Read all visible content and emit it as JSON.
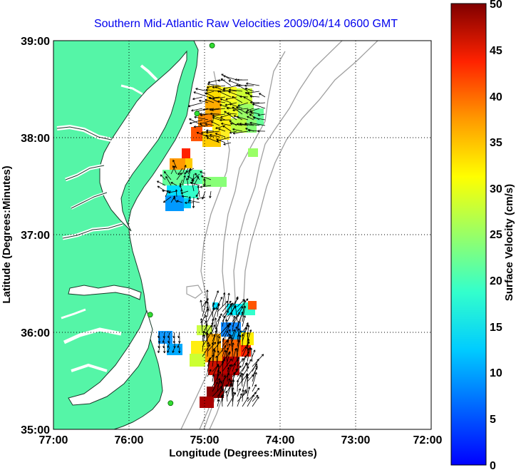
{
  "title": "Southern Mid-Atlantic Raw Velocities 2009/04/14 0600 GMT",
  "xlabel": "Longitude (Degrees:Minutes)",
  "ylabel": "Latitude (Degrees:Minutes)",
  "x_ticks": [
    "77:00",
    "76:00",
    "75:00",
    "74:00",
    "73:00",
    "72:00"
  ],
  "y_ticks": [
    "39:00",
    "38:00",
    "37:00",
    "36:00",
    "35:00"
  ],
  "colorbar": {
    "label": "Surface Velocity (cm/s)",
    "ticks": [
      "50",
      "45",
      "40",
      "35",
      "30",
      "25",
      "20",
      "15",
      "10",
      "5",
      "0"
    ],
    "range": [
      0,
      50
    ],
    "colormap": "jet"
  },
  "colors": {
    "land": "#55f5a7",
    "coastline": "#1a3a2a",
    "bathymetry": "#a0a0a0",
    "title": "#0000ee",
    "vectors": "#000000"
  },
  "extent": {
    "lon": [
      -77,
      -72
    ],
    "lat": [
      35,
      39
    ]
  },
  "grid": true,
  "stations": [
    {
      "lon": -74.9,
      "lat": 38.95
    },
    {
      "lon": -75.1,
      "lat": 38.25
    },
    {
      "lon": -75.72,
      "lat": 36.18
    },
    {
      "lon": -75.45,
      "lat": 35.27
    }
  ]
}
